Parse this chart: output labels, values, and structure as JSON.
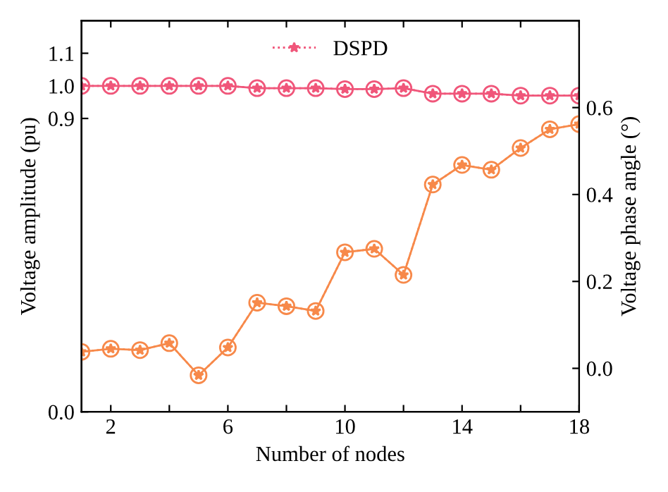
{
  "chart_data": {
    "type": "line",
    "xlabel": "Number of nodes",
    "ylabel": "Voltage amplitude (pu)",
    "y2label": "Voltage phase angle (°)",
    "x": [
      1,
      2,
      3,
      4,
      5,
      6,
      7,
      8,
      9,
      10,
      11,
      12,
      13,
      14,
      15,
      16,
      17,
      18
    ],
    "series": [
      {
        "color": "#f0567a",
        "marker": "circle",
        "line_style": "solid",
        "values": [
          1.0,
          1.0,
          1.0,
          1.0,
          1.0,
          1.0,
          0.993,
          0.993,
          0.993,
          0.99,
          0.99,
          0.993,
          0.976,
          0.976,
          0.976,
          0.97,
          0.97,
          0.97
        ]
      },
      {
        "name": "DSPD",
        "color": "#f0567a",
        "marker": "star",
        "line_style": "dotted",
        "values": [
          1.0,
          1.0,
          1.0,
          1.0,
          1.0,
          1.0,
          0.993,
          0.993,
          0.993,
          0.99,
          0.99,
          0.993,
          0.976,
          0.976,
          0.976,
          0.97,
          0.97,
          0.97
        ]
      },
      {
        "axis": "y2",
        "color": "#f7894a",
        "marker": "circle",
        "line_style": "solid",
        "values": [
          0.038,
          0.045,
          0.042,
          0.058,
          -0.016,
          0.048,
          0.151,
          0.143,
          0.132,
          0.267,
          0.275,
          0.215,
          0.423,
          0.468,
          0.457,
          0.507,
          0.55,
          0.562
        ]
      },
      {
        "axis": "y2",
        "color": "#f7894a",
        "marker": "star",
        "line_style": "dotted",
        "values": [
          0.038,
          0.045,
          0.042,
          0.058,
          -0.016,
          0.048,
          0.151,
          0.143,
          0.132,
          0.267,
          0.275,
          0.215,
          0.423,
          0.468,
          0.457,
          0.507,
          0.55,
          0.562
        ]
      }
    ],
    "xlim": [
      1,
      18
    ],
    "xticks": [
      2,
      {
        "value": 4,
        "label": null
      },
      6,
      {
        "value": 8,
        "label": null
      },
      10,
      {
        "value": 12,
        "label": null
      },
      14,
      {
        "value": 16,
        "label": null
      },
      18
    ],
    "ylim": [
      0,
      1.2
    ],
    "yticks": [
      {
        "value": 0,
        "label": "0.0"
      },
      0.9,
      {
        "value": 1.0,
        "label": "1.0"
      },
      1.1
    ],
    "y2lim": [
      -0.1,
      0.8
    ],
    "y2ticks": [
      {
        "value": 0,
        "label": "0.0"
      },
      0.2,
      0.4,
      0.6
    ],
    "grid": false,
    "legend": "top"
  }
}
